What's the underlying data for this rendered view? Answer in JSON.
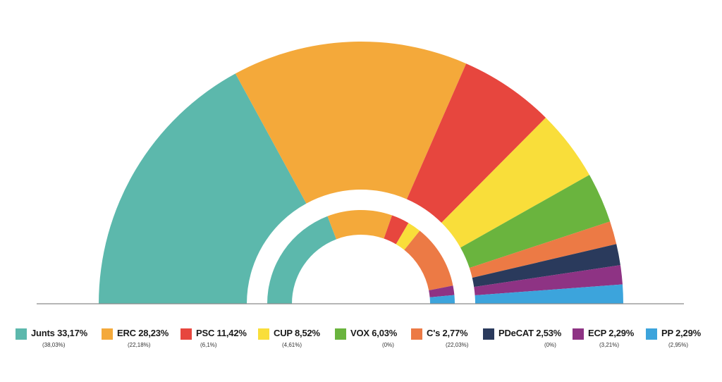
{
  "chart_data": {
    "type": "pie",
    "subtype": "nested-semicircle-donut",
    "categories": [
      "Junts",
      "ERC",
      "PSC",
      "CUP",
      "VOX",
      "C's",
      "PDeCAT",
      "ECP",
      "PP"
    ],
    "labels": [
      "Junts 33,17%",
      "ERC 28,23%",
      "PSC 11,42%",
      "CUP 8,52%",
      "VOX 6,03%",
      "C's 2,77%",
      "PDeCAT 2,53%",
      "ECP 2,29%",
      "PP 2,29%"
    ],
    "previous_labels": [
      "(38,03%)",
      "(22,18%)",
      "(6,1%)",
      "(4,61%)",
      "(0%)",
      "(22,03%)",
      "(0%)",
      "(3,21%)",
      "(2,95%)"
    ],
    "series": [
      {
        "ring": "outer",
        "values": [
          33.17,
          28.23,
          11.42,
          8.52,
          6.03,
          2.77,
          2.53,
          2.29,
          2.29
        ]
      },
      {
        "ring": "inner",
        "values": [
          38.03,
          22.18,
          6.1,
          4.61,
          0,
          22.03,
          0,
          3.21,
          2.95
        ]
      }
    ],
    "colors": [
      "#5cb8ac",
      "#f4a93a",
      "#e7463e",
      "#f9de3a",
      "#6ab43e",
      "#ec7a45",
      "#2a3a5c",
      "#8e3384",
      "#3ca4dc"
    ],
    "legend_position": "bottom"
  }
}
